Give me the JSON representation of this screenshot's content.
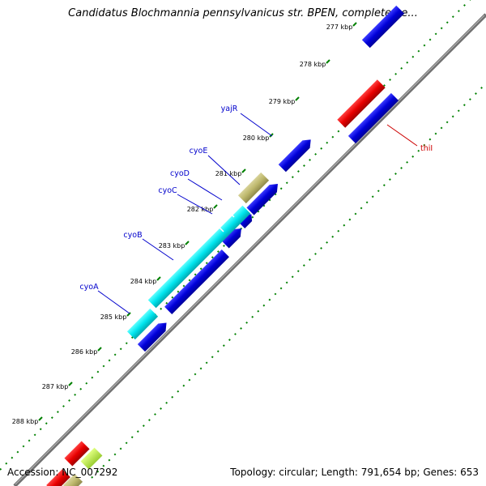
{
  "title": "Candidatus Blochmannia pennsylvanicus str. BPEN, complete ge...",
  "footer": {
    "accession": "Accession: NC_007292",
    "summary": "Topology: circular; Length: 791,654 bp; Genes: 653"
  },
  "ticks": [
    {
      "label": "277 kbp"
    },
    {
      "label": "278 kbp"
    },
    {
      "label": "279 kbp"
    },
    {
      "label": "280 kbp"
    },
    {
      "label": "281 kbp"
    },
    {
      "label": "282 kbp"
    },
    {
      "label": "283 kbp"
    },
    {
      "label": "284 kbp"
    },
    {
      "label": "285 kbp"
    },
    {
      "label": "286 kbp"
    },
    {
      "label": "287 kbp"
    },
    {
      "label": "288 kbp"
    }
  ],
  "gene_labels": [
    {
      "name": "yajR",
      "color": "#0000cc"
    },
    {
      "name": "cyoE",
      "color": "#0000cc"
    },
    {
      "name": "cyoD",
      "color": "#0000cc"
    },
    {
      "name": "cyoC",
      "color": "#0000cc"
    },
    {
      "name": "cyoB",
      "color": "#0000cc"
    },
    {
      "name": "cyoA",
      "color": "#0000cc"
    },
    {
      "name": "thiI",
      "color": "#cc0000"
    }
  ],
  "colors": {
    "forward_cds": "#0000e0",
    "reverse_cds": "#ee0000",
    "cyo_operon": "#00e5ee",
    "other_feature": "#bdb76b",
    "backbone": "#808080",
    "tick_marks": "#008000"
  }
}
